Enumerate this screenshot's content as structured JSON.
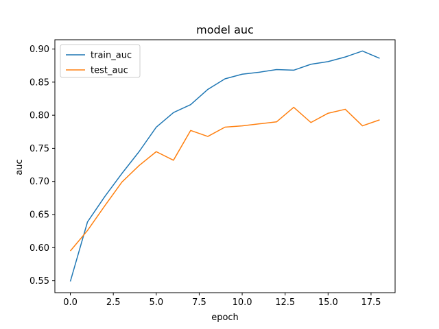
{
  "chart_data": {
    "type": "line",
    "title": "model auc",
    "xlabel": "epoch",
    "ylabel": "auc",
    "xlim": [
      -0.9,
      18.9
    ],
    "ylim": [
      0.532,
      0.914
    ],
    "xticks": [
      0,
      2.5,
      5,
      7.5,
      10,
      12.5,
      15,
      17.5
    ],
    "xtick_labels": [
      "0.0",
      "2.5",
      "5.0",
      "7.5",
      "10.0",
      "12.5",
      "15.0",
      "17.5"
    ],
    "yticks": [
      0.55,
      0.6,
      0.65,
      0.7,
      0.75,
      0.8,
      0.85,
      0.9
    ],
    "ytick_labels": [
      "0.55",
      "0.60",
      "0.65",
      "0.70",
      "0.75",
      "0.80",
      "0.85",
      "0.90"
    ],
    "grid": false,
    "legend_position": "top-left",
    "x": [
      0,
      1,
      2,
      3,
      4,
      5,
      6,
      7,
      8,
      9,
      10,
      11,
      12,
      13,
      14,
      15,
      16,
      17,
      18
    ],
    "series": [
      {
        "name": "train_auc",
        "color": "#1f77b4",
        "values": [
          0.549,
          0.639,
          0.677,
          0.712,
          0.745,
          0.782,
          0.804,
          0.816,
          0.839,
          0.855,
          0.862,
          0.865,
          0.869,
          0.868,
          0.877,
          0.881,
          0.888,
          0.897,
          0.886
        ]
      },
      {
        "name": "test_auc",
        "color": "#ff7f0e",
        "values": [
          0.595,
          0.626,
          0.663,
          0.699,
          0.724,
          0.745,
          0.732,
          0.777,
          0.768,
          0.782,
          0.784,
          0.787,
          0.79,
          0.812,
          0.789,
          0.803,
          0.809,
          0.784,
          0.793
        ]
      }
    ]
  }
}
